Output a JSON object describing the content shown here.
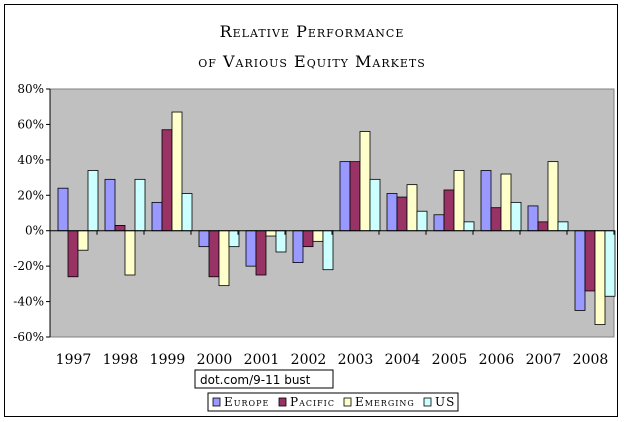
{
  "chart_data": {
    "type": "bar",
    "title": "Relative Performance",
    "subtitle": "of Various Equity Markets",
    "categories": [
      "1997",
      "1998",
      "1999",
      "2000",
      "2001",
      "2002",
      "2003",
      "2004",
      "2005",
      "2006",
      "2007",
      "2008"
    ],
    "series": [
      {
        "name": "Europe",
        "color": "#9999ff",
        "values": [
          24,
          29,
          16,
          -9,
          -20,
          -18,
          39,
          21,
          9,
          34,
          14,
          -45
        ]
      },
      {
        "name": "Pacific",
        "color": "#993366",
        "values": [
          -26,
          3,
          57,
          -26,
          -25,
          -9,
          39,
          19,
          23,
          13,
          5,
          -34
        ]
      },
      {
        "name": "Emerging",
        "color": "#ffffcc",
        "values": [
          -11,
          -25,
          67,
          -31,
          -3,
          -6,
          56,
          26,
          34,
          32,
          39,
          -53
        ]
      },
      {
        "name": "US",
        "color": "#ccffff",
        "values": [
          34,
          29,
          21,
          -9,
          -12,
          -22,
          29,
          11,
          5,
          16,
          5,
          -37
        ]
      }
    ],
    "yticks": [
      "80%",
      "60%",
      "40%",
      "20%",
      "0%",
      "-20%",
      "-40%",
      "-60%"
    ],
    "ylim": [
      -60,
      80
    ],
    "grid": false,
    "plot_background": "#c0c0c0",
    "legend_position": "bottom",
    "annotation": "dot.com/9-11 bust"
  }
}
